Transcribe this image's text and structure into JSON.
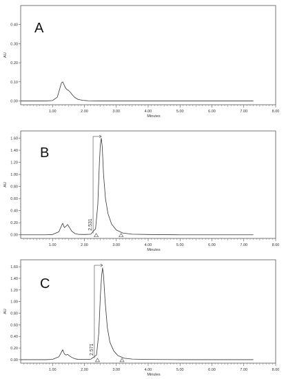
{
  "chart_data": [
    {
      "type": "line",
      "panel_label": "A",
      "xlabel": "Minutes",
      "ylabel": "AU",
      "xlim": [
        0,
        8
      ],
      "ylim": [
        -0.02,
        0.5
      ],
      "x_ticks": [
        "1.00",
        "2.00",
        "3.00",
        "4.00",
        "5.00",
        "6.00",
        "7.00",
        "8.00"
      ],
      "y_ticks": [
        "0.00",
        "0.10",
        "0.20",
        "0.30",
        "0.40"
      ],
      "series": [
        {
          "x": [
            0.0,
            0.8,
            1.0,
            1.15,
            1.22,
            1.28,
            1.32,
            1.36,
            1.4,
            1.45,
            1.5,
            1.56,
            1.62,
            1.7,
            1.8,
            1.95,
            2.1,
            2.4,
            3.0,
            4.0,
            5.0,
            6.0,
            7.0,
            7.3
          ],
          "y": [
            0.0,
            0.0,
            0.002,
            0.02,
            0.06,
            0.095,
            0.1,
            0.085,
            0.07,
            0.06,
            0.055,
            0.045,
            0.032,
            0.018,
            0.008,
            0.003,
            0.001,
            0.0,
            0.0,
            0.0,
            0.0,
            0.0,
            0.0,
            0.0
          ]
        }
      ],
      "annotations": []
    },
    {
      "type": "line",
      "panel_label": "B",
      "xlabel": "Minutes",
      "ylabel": "AU",
      "xlim": [
        0,
        8
      ],
      "ylim": [
        -0.06,
        1.72
      ],
      "x_ticks": [
        "1.00",
        "2.00",
        "3.00",
        "4.00",
        "5.00",
        "6.00",
        "7.00",
        "8.00"
      ],
      "y_ticks": [
        "0.00",
        "0.20",
        "0.40",
        "0.60",
        "0.80",
        "1.00",
        "1.20",
        "1.40",
        "1.60"
      ],
      "series": [
        {
          "x": [
            0.0,
            0.8,
            1.0,
            1.2,
            1.28,
            1.32,
            1.37,
            1.42,
            1.47,
            1.52,
            1.6,
            1.7,
            1.8,
            2.0,
            2.2,
            2.35,
            2.42,
            2.47,
            2.5,
            2.53,
            2.56,
            2.6,
            2.66,
            2.74,
            2.85,
            3.0,
            3.2,
            3.5,
            4.0,
            5.0,
            6.0,
            7.0,
            7.3
          ],
          "y": [
            0.0,
            0.0,
            0.005,
            0.05,
            0.15,
            0.19,
            0.12,
            0.14,
            0.17,
            0.13,
            0.06,
            0.02,
            0.008,
            0.005,
            0.01,
            0.1,
            0.5,
            1.2,
            1.5,
            1.6,
            1.45,
            1.0,
            0.6,
            0.35,
            0.18,
            0.08,
            0.03,
            0.01,
            0.005,
            0.0,
            0.0,
            0.0,
            0.0
          ]
        }
      ],
      "annotations": [
        {
          "type": "peak_label",
          "text": "2.531",
          "x": 2.531,
          "y": 1.6
        },
        {
          "type": "baseline_marker",
          "x": 2.37
        },
        {
          "type": "baseline_marker",
          "x": 3.15
        }
      ]
    },
    {
      "type": "line",
      "panel_label": "C",
      "xlabel": "Minutes",
      "ylabel": "AU",
      "xlim": [
        0,
        8
      ],
      "ylim": [
        -0.06,
        1.72
      ],
      "x_ticks": [
        "1.00",
        "2.00",
        "3.00",
        "4.00",
        "5.00",
        "6.00",
        "7.00",
        "8.00"
      ],
      "y_ticks": [
        "0.00",
        "0.20",
        "0.40",
        "0.60",
        "0.80",
        "1.00",
        "1.20",
        "1.40",
        "1.60"
      ],
      "series": [
        {
          "x": [
            0.0,
            0.8,
            1.0,
            1.2,
            1.28,
            1.32,
            1.37,
            1.42,
            1.47,
            1.52,
            1.6,
            1.7,
            1.8,
            2.0,
            2.2,
            2.38,
            2.45,
            2.5,
            2.54,
            2.57,
            2.6,
            2.65,
            2.72,
            2.8,
            2.92,
            3.05,
            3.25,
            3.5,
            4.0,
            5.0,
            6.0,
            7.0,
            7.3
          ],
          "y": [
            0.0,
            0.0,
            0.005,
            0.05,
            0.13,
            0.17,
            0.1,
            0.08,
            0.09,
            0.07,
            0.04,
            0.015,
            0.006,
            0.004,
            0.008,
            0.08,
            0.45,
            1.1,
            1.45,
            1.58,
            1.45,
            1.0,
            0.55,
            0.3,
            0.15,
            0.07,
            0.025,
            0.01,
            0.004,
            0.0,
            0.0,
            0.0,
            0.0
          ]
        }
      ],
      "annotations": [
        {
          "type": "peak_label",
          "text": "2.571",
          "x": 2.571,
          "y": 1.58
        },
        {
          "type": "baseline_marker",
          "x": 2.41
        },
        {
          "type": "baseline_marker",
          "x": 3.18
        }
      ]
    }
  ]
}
